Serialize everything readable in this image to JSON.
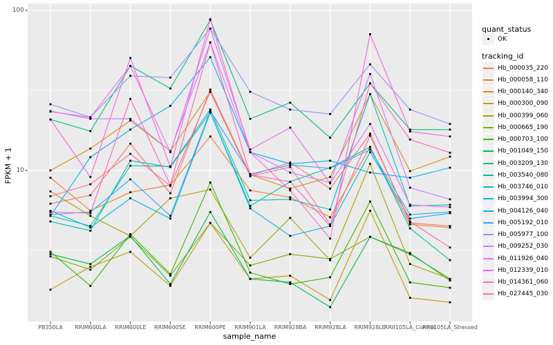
{
  "theme": {
    "panel_bg": "#EBEBEB",
    "grid_color": "#FFFFFF",
    "point_color": "#000000",
    "tick_label_color": "#4D4D4D"
  },
  "legend": {
    "quant_status": {
      "title": "quant_status",
      "items": [
        {
          "label": "OK",
          "symbol": "point",
          "color": "#000000"
        }
      ]
    },
    "tracking_id": {
      "title": "tracking_id"
    }
  },
  "chart_data": {
    "type": "line",
    "title": "",
    "xlabel": "sample_name",
    "ylabel": "FPKM + 1",
    "y_scale": "log10",
    "ylim": [
      1.14,
      110
    ],
    "grid": true,
    "legend_position": "right",
    "y_ticks": [
      {
        "value": 100,
        "label": "100"
      },
      {
        "value": 10,
        "label": "10"
      }
    ],
    "y_minor_gridlines": [
      31.62,
      3.162
    ],
    "x_categories": [
      "PB350LA",
      "RRIM600LA",
      "RRIM600LE",
      "RRIM600SE",
      "RRIM600PE",
      "RRIM901LA",
      "RRIM928BA",
      "RRIM928LA",
      "RRIM928LE",
      "RRII105LA_Control",
      "RRII105LA_Stressed"
    ],
    "series": [
      {
        "name": "Hb_000035_220",
        "color": "#F8766D",
        "values": [
          6.2,
          7.0,
          14.7,
          7.2,
          32,
          9.3,
          11.2,
          7.7,
          17,
          4.7,
          4.5
        ]
      },
      {
        "name": "Hb_000058_110",
        "color": "#EA8331",
        "values": [
          9.0,
          5.6,
          7.3,
          8.1,
          16.3,
          7.5,
          6.8,
          5.1,
          14,
          4.6,
          4.4
        ]
      },
      {
        "name": "Hb_000140_340",
        "color": "#D89000",
        "values": [
          10,
          13.7,
          20.5,
          13.2,
          31,
          9.4,
          7.7,
          9.1,
          30,
          9.9,
          12.2
        ]
      },
      {
        "name": "Hb_000300_090",
        "color": "#C09B00",
        "values": [
          1.8,
          2.5,
          3.1,
          1.9,
          4.7,
          2.1,
          2.2,
          1.55,
          5.6,
          1.6,
          1.5
        ]
      },
      {
        "name": "Hb_000399_060",
        "color": "#A3A500",
        "values": [
          7.4,
          5.2,
          3.9,
          6.7,
          7.6,
          2.85,
          5.05,
          2.75,
          11,
          2.6,
          2.1
        ]
      },
      {
        "name": "Hb_000665_190",
        "color": "#7CAE00",
        "values": [
          2.9,
          2.4,
          3.85,
          2.2,
          4.7,
          2.55,
          3.0,
          2.8,
          3.85,
          3.05,
          2.05
        ]
      },
      {
        "name": "Hb_000703_100",
        "color": "#39B600",
        "values": [
          3.1,
          1.9,
          4.0,
          2.25,
          8.4,
          2.3,
          1.95,
          2.15,
          6.4,
          2.0,
          1.85
        ]
      },
      {
        "name": "Hb_001049_150",
        "color": "#00BB4E",
        "values": [
          3.0,
          2.6,
          3.9,
          1.95,
          5.5,
          2.1,
          2.0,
          1.4,
          3.85,
          3.0,
          2.1
        ]
      },
      {
        "name": "Hb_003209_130",
        "color": "#00BF7D",
        "values": [
          20.8,
          17.6,
          45,
          32.5,
          87,
          21,
          26.5,
          16,
          35,
          18,
          18
        ]
      },
      {
        "name": "Hb_003540_080",
        "color": "#00C1A3",
        "values": [
          4.8,
          4.2,
          11.5,
          10.5,
          23,
          6.0,
          8.5,
          10.4,
          14,
          4.35,
          2.75
        ]
      },
      {
        "name": "Hb_003746_010",
        "color": "#00BFC4",
        "values": [
          5.2,
          4.5,
          10.7,
          10.6,
          24,
          6.5,
          6.6,
          5.7,
          30,
          6.0,
          6.1
        ]
      },
      {
        "name": "Hb_003994_300",
        "color": "#00BAE0",
        "values": [
          5.6,
          4.4,
          6.7,
          5.0,
          23,
          5.8,
          3.9,
          4.5,
          13,
          5.0,
          5.4
        ]
      },
      {
        "name": "Hb_004126_040",
        "color": "#00B0F6",
        "values": [
          5.2,
          12.1,
          18,
          25.3,
          51,
          13,
          11,
          11.5,
          9.7,
          9.0,
          10.4
        ]
      },
      {
        "name": "Hb_005192_010",
        "color": "#35A2FF",
        "values": [
          5.3,
          5.5,
          8.8,
          5.2,
          23.5,
          9.5,
          10.8,
          10.3,
          13.5,
          5.3,
          5.5
        ]
      },
      {
        "name": "Hb_005977_100",
        "color": "#9590FF",
        "values": [
          25.9,
          21.5,
          39,
          38,
          77,
          31,
          24,
          22.5,
          46,
          24,
          19.5
        ]
      },
      {
        "name": "Hb_009252_030",
        "color": "#C77CFF",
        "values": [
          23.5,
          21.0,
          21,
          13.2,
          63,
          13,
          9.7,
          8.4,
          40,
          7.8,
          6.6
        ]
      },
      {
        "name": "Hb_011926_040",
        "color": "#E76BF3",
        "values": [
          23.3,
          21.5,
          45,
          13.0,
          77,
          13.5,
          18.5,
          8.3,
          19.5,
          6.1,
          5.9
        ]
      },
      {
        "name": "Hb_012339_010",
        "color": "#FA62DB",
        "values": [
          20.8,
          9.1,
          50.4,
          10.5,
          88,
          13,
          7.5,
          3.75,
          71,
          17.5,
          16.3
        ]
      },
      {
        "name": "Hb_014361_060",
        "color": "#FF62BC",
        "values": [
          5.5,
          5.4,
          28,
          8.1,
          63,
          9.4,
          8.5,
          4.5,
          35,
          15.6,
          12.9
        ]
      },
      {
        "name": "Hb_027445_030",
        "color": "#FF6A98",
        "values": [
          6.9,
          8.2,
          12.7,
          8.0,
          31,
          9.2,
          10.5,
          4.6,
          16.5,
          4.8,
          3.3
        ]
      }
    ]
  }
}
